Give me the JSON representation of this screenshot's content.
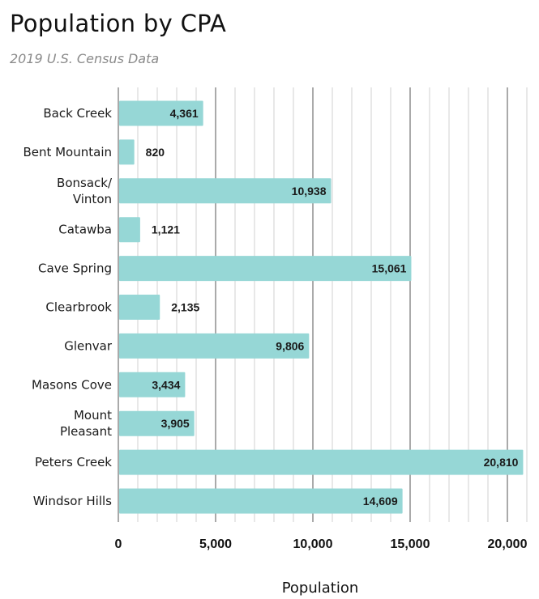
{
  "chart_data": {
    "type": "bar",
    "orientation": "horizontal",
    "title": "Population by CPA",
    "subtitle": "2019 U.S. Census Data",
    "xlabel": "Population",
    "ylabel": "",
    "categories": [
      [
        "Back Creek"
      ],
      [
        "Bent Mountain"
      ],
      [
        "Bonsack/",
        "Vinton"
      ],
      [
        "Catawba"
      ],
      [
        "Cave Spring"
      ],
      [
        "Clearbrook"
      ],
      [
        "Glenvar"
      ],
      [
        "Masons Cove"
      ],
      [
        "Mount",
        "Pleasant"
      ],
      [
        "Peters Creek"
      ],
      [
        "Windsor Hills"
      ]
    ],
    "values": [
      4361,
      820,
      10938,
      1121,
      15061,
      2135,
      9806,
      3434,
      3905,
      20810,
      14609
    ],
    "value_labels": [
      "4,361",
      "820",
      "10,938",
      "1,121",
      "15,061",
      "2,135",
      "9,806",
      "3,434",
      "3,905",
      "20,810",
      "14,609"
    ],
    "xlim": [
      0,
      21000
    ],
    "xticks": [
      0,
      5000,
      10000,
      15000,
      20000
    ],
    "xtick_labels": [
      "0",
      "5,000",
      "10,000",
      "15,000",
      "20,000"
    ],
    "minor_grid_step": 1000,
    "grid": true,
    "legend": "none",
    "bar_color": "#96d7d6",
    "major_grid_color": "#555555",
    "minor_grid_color": "#d0d0d0"
  }
}
